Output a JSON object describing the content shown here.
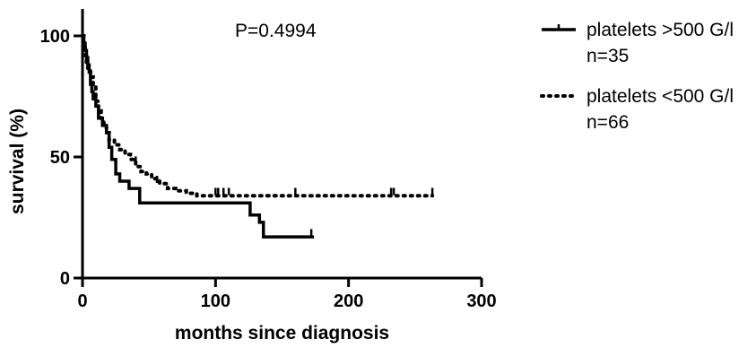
{
  "chart_data": {
    "type": "line",
    "title": "",
    "xlabel": "months since diagnosis",
    "ylabel": "survival (%)",
    "xlim": [
      0,
      300
    ],
    "ylim": [
      0,
      105
    ],
    "x_ticks": [
      0,
      100,
      200,
      300
    ],
    "y_ticks": [
      0,
      50,
      100
    ],
    "annotation": "P=0.4994",
    "legend_position": "right",
    "grid": false,
    "series": [
      {
        "name": "platelets >500 G/l",
        "sub": "n=35",
        "style": "solid",
        "color": "#000000",
        "steps": [
          [
            0,
            100
          ],
          [
            1,
            97
          ],
          [
            2,
            94
          ],
          [
            3,
            91
          ],
          [
            4,
            88
          ],
          [
            5,
            85
          ],
          [
            6,
            80
          ],
          [
            7,
            77
          ],
          [
            8,
            74
          ],
          [
            10,
            71
          ],
          [
            12,
            66
          ],
          [
            15,
            63
          ],
          [
            18,
            60
          ],
          [
            20,
            54
          ],
          [
            22,
            49
          ],
          [
            25,
            43
          ],
          [
            28,
            40
          ],
          [
            35,
            37
          ],
          [
            43,
            31
          ],
          [
            123,
            31
          ],
          [
            126,
            26
          ],
          [
            133,
            23
          ],
          [
            136,
            17
          ],
          [
            174,
            17
          ]
        ],
        "censored": [
          [
            172,
            18
          ]
        ]
      },
      {
        "name": "platelets <500 G/l",
        "sub": "n=66",
        "style": "dotted",
        "color": "#000000",
        "steps": [
          [
            0,
            100
          ],
          [
            1,
            95
          ],
          [
            2,
            92
          ],
          [
            3,
            89
          ],
          [
            4,
            86
          ],
          [
            6,
            83
          ],
          [
            8,
            79
          ],
          [
            10,
            73
          ],
          [
            12,
            69
          ],
          [
            14,
            66
          ],
          [
            16,
            63
          ],
          [
            18,
            60
          ],
          [
            20,
            57
          ],
          [
            24,
            55
          ],
          [
            28,
            53
          ],
          [
            32,
            51
          ],
          [
            36,
            49
          ],
          [
            40,
            46
          ],
          [
            44,
            44
          ],
          [
            48,
            43
          ],
          [
            52,
            41
          ],
          [
            58,
            39
          ],
          [
            64,
            37
          ],
          [
            70,
            36
          ],
          [
            78,
            35
          ],
          [
            86,
            34
          ],
          [
            263,
            34
          ]
        ],
        "censored": [
          [
            20,
            58
          ],
          [
            40,
            48
          ],
          [
            56,
            40
          ],
          [
            100,
            35
          ],
          [
            102,
            35
          ],
          [
            106,
            35
          ],
          [
            110,
            35
          ],
          [
            160,
            35
          ],
          [
            232,
            35
          ],
          [
            234,
            35
          ],
          [
            263,
            35
          ]
        ]
      }
    ]
  }
}
